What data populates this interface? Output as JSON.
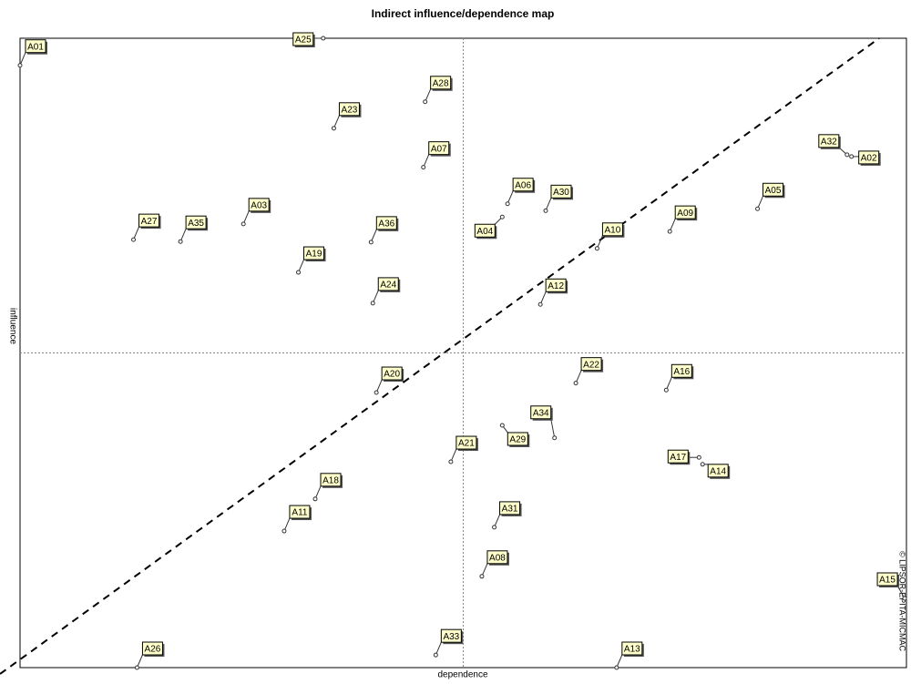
{
  "chart_data": {
    "type": "scatter",
    "title": "Indirect influence/dependence map",
    "x_label": "dependence",
    "y_label": "influence",
    "annotation": "© LIPSOR-EPITA-MICMAC",
    "labels": [
      "A01",
      "A25",
      "A28",
      "A23",
      "A07",
      "A32",
      "A02",
      "A05",
      "A06",
      "A30",
      "A04",
      "A27",
      "A35",
      "A03",
      "A36",
      "A10",
      "A09",
      "A19",
      "A24",
      "A12",
      "A20",
      "A22",
      "A16",
      "A34",
      "A29",
      "A21",
      "A17",
      "A14",
      "A18",
      "A11",
      "A31",
      "A08",
      "A15",
      "A26",
      "A33",
      "A13"
    ],
    "x": [
      0,
      34.2,
      45.7,
      35.4,
      45.5,
      93.3,
      93.8,
      83.2,
      55.0,
      59.3,
      54.4,
      12.8,
      18.1,
      25.2,
      39.6,
      65.1,
      73.3,
      31.4,
      39.8,
      58.7,
      40.2,
      62.7,
      72.9,
      60.3,
      54.4,
      48.6,
      76.6,
      77.0,
      33.3,
      29.8,
      53.5,
      52.1,
      99.8,
      13.2,
      46.9,
      67.3
    ],
    "y": [
      95.7,
      100,
      89.9,
      85.7,
      79.5,
      81.5,
      81.2,
      72.9,
      73.7,
      72.6,
      71.6,
      68.0,
      67.7,
      70.5,
      67.6,
      66.6,
      69.3,
      62.8,
      57.9,
      57.7,
      43.7,
      45.2,
      44.1,
      36.5,
      38.5,
      32.7,
      33.4,
      32.3,
      26.8,
      21.7,
      22.3,
      14.5,
      11.0,
      0,
      2.0,
      0
    ],
    "xlim": [
      0,
      100
    ],
    "ylim": [
      0,
      100
    ],
    "reference_lines": {
      "x": 50,
      "y": 50
    }
  }
}
